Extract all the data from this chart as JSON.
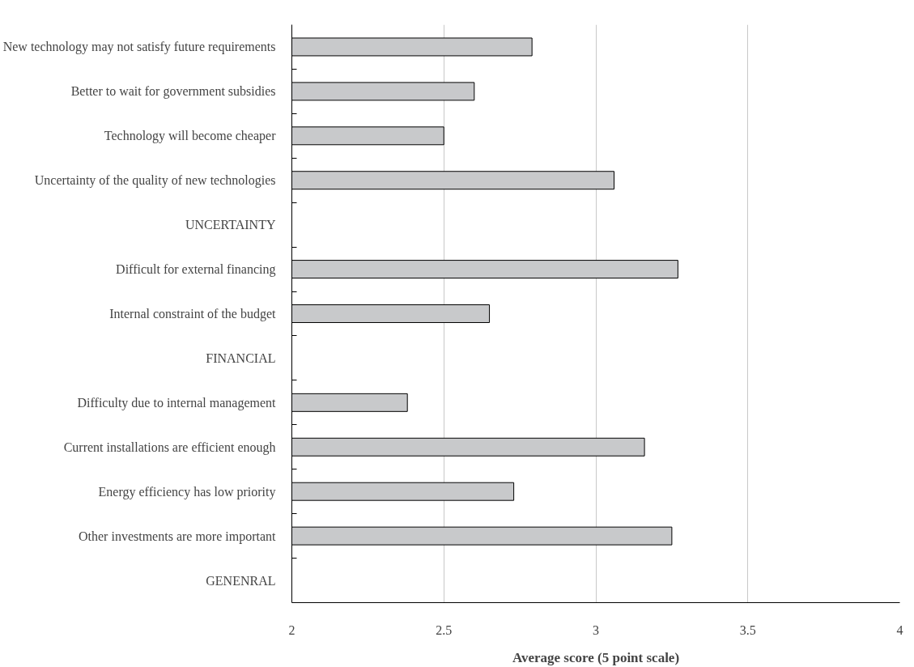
{
  "chart_data": {
    "type": "bar",
    "orientation": "horizontal",
    "xlabel": "Average score (5 point scale)",
    "categories": [
      "New technology may not satisfy future requirements",
      "Better to wait for government subsidies",
      "Technology will become cheaper",
      "Uncertainty of the quality of new technologies",
      "UNCERTAINTY",
      "Difficult for external financing",
      "Internal constraint of the budget",
      "FINANCIAL",
      "Difficulty due to internal management",
      "Current installations are efficient enough",
      "Energy efficiency has low priority",
      "Other investments are more important",
      "GENENRAL"
    ],
    "values": [
      2.79,
      2.6,
      2.5,
      3.06,
      null,
      3.27,
      2.65,
      null,
      2.38,
      3.16,
      2.73,
      3.25,
      null
    ],
    "color": "#c8c9cb",
    "xlim": [
      2,
      4
    ],
    "xticks": [
      2,
      2.5,
      3,
      3.5,
      4
    ],
    "grid": "x"
  }
}
